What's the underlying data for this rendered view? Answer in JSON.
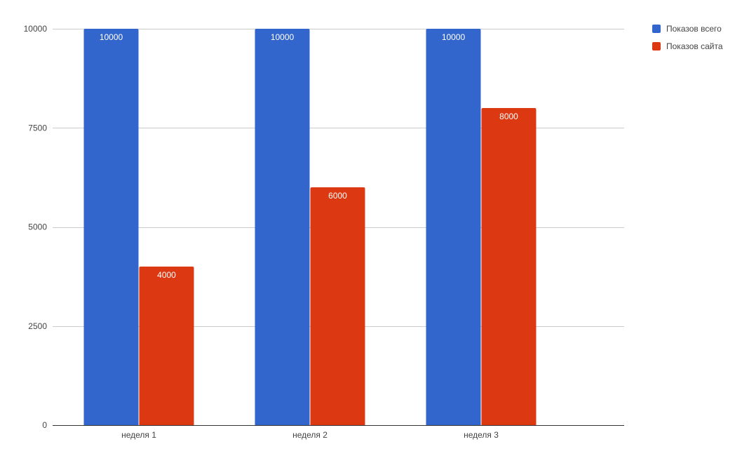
{
  "chart_data": {
    "type": "bar",
    "categories": [
      "неделя 1",
      "неделя 2",
      "неделя 3"
    ],
    "series": [
      {
        "name": "Показов всего",
        "color": "#3366cc",
        "values": [
          10000,
          10000,
          10000
        ]
      },
      {
        "name": "Показов сайта",
        "color": "#dc3912",
        "values": [
          4000,
          6000,
          8000
        ]
      }
    ],
    "ylim": [
      0,
      10000
    ],
    "yticks": [
      0,
      2500,
      5000,
      7500,
      10000
    ],
    "data_labels": true,
    "grid": true,
    "legend_position": "top-right",
    "title": "",
    "xlabel": "",
    "ylabel": ""
  }
}
